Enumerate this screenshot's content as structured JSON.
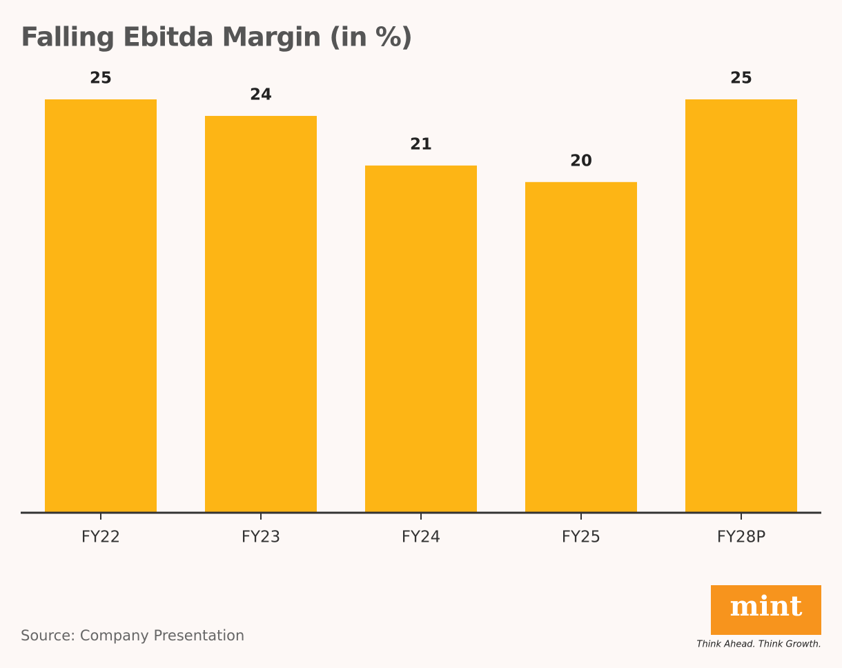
{
  "chart_data": {
    "type": "bar",
    "title": "Falling Ebitda Margin (in %)",
    "categories": [
      "FY22",
      "FY23",
      "FY24",
      "FY25",
      "FY28P"
    ],
    "values": [
      25,
      24,
      21,
      20,
      25
    ],
    "color": "#fdb515",
    "ylim": [
      0,
      25
    ],
    "source": "Source: Company Presentation"
  },
  "logo": {
    "name": "mint",
    "tagline": "Think Ahead. Think Growth."
  }
}
